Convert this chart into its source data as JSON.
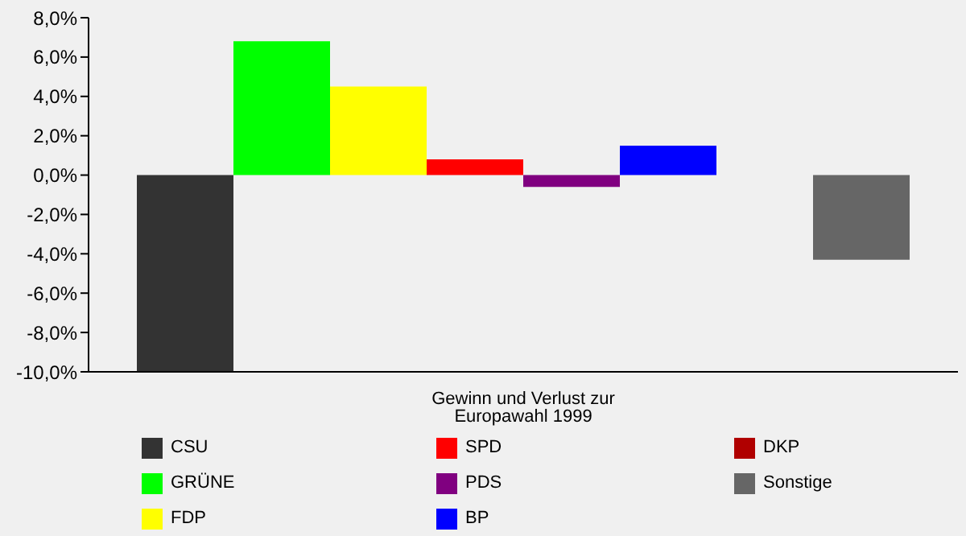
{
  "chart_data": {
    "type": "bar",
    "categories": [
      "Gewinn und Verlust zur Europawahl 1999"
    ],
    "series": [
      {
        "name": "CSU",
        "color": "#333333",
        "values": [
          -10
        ]
      },
      {
        "name": "GRÜNE",
        "color": "#00ff00",
        "values": [
          6.8
        ]
      },
      {
        "name": "FDP",
        "color": "#ffff00",
        "values": [
          4.5
        ]
      },
      {
        "name": "SPD",
        "color": "#ff0000",
        "values": [
          0.8
        ]
      },
      {
        "name": "PDS",
        "color": "#800080",
        "values": [
          -0.6
        ]
      },
      {
        "name": "BP",
        "color": "#0000ff",
        "values": [
          1.5
        ]
      },
      {
        "name": "DKP",
        "color": "#b00000",
        "values": [
          0
        ]
      },
      {
        "name": "Sonstige",
        "color": "#666666",
        "values": [
          -4.3
        ]
      }
    ],
    "ylim": [
      -10,
      8
    ],
    "yticks": [
      {
        "value": 8,
        "label": "8,0%"
      },
      {
        "value": 6,
        "label": "6,0%"
      },
      {
        "value": 4,
        "label": "4,0%"
      },
      {
        "value": 2,
        "label": "2,0%"
      },
      {
        "value": 0,
        "label": "0,0%"
      },
      {
        "value": -2,
        "label": "-2,0%"
      },
      {
        "value": -4,
        "label": "-4,0%"
      },
      {
        "value": -6,
        "label": "-6,0%"
      },
      {
        "value": -8,
        "label": "-8,0%"
      },
      {
        "value": -10,
        "label": "-10,0%"
      }
    ],
    "grid": false,
    "legend": "bottom"
  }
}
